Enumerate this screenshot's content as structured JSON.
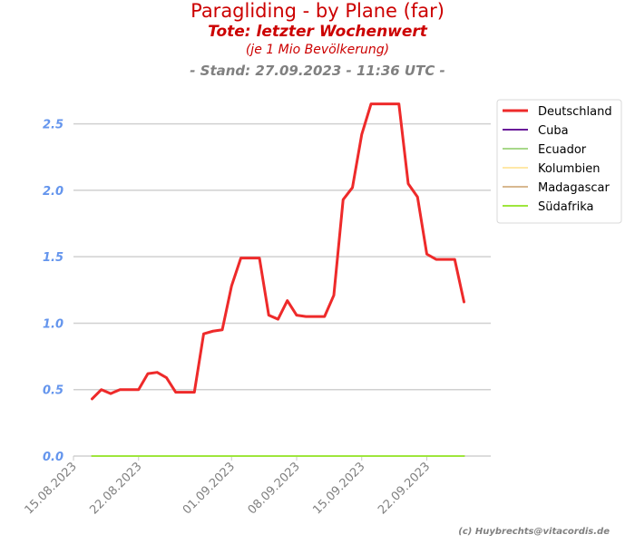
{
  "chart_data": {
    "type": "line",
    "title": "Paragliding - by Plane (far)",
    "subtitle": "Tote: letzter Wochenwert",
    "subtitle2": "(je 1 Mio Bevölkerung)",
    "stand": "- Stand: 27.09.2023 - 11:36 UTC -",
    "xlabel": "",
    "ylabel": "",
    "ylim": [
      0,
      2.75
    ],
    "yticks": [
      "0.0",
      "0.5",
      "1.0",
      "1.5",
      "2.0",
      "2.5"
    ],
    "xticks": [
      "15.08.2023",
      "22.08.2023",
      "01.09.2023",
      "08.09.2023",
      "15.09.2023",
      "22.09.2023"
    ],
    "x": [
      "17.08.2023",
      "18.08.2023",
      "19.08.2023",
      "20.08.2023",
      "21.08.2023",
      "22.08.2023",
      "23.08.2023",
      "24.08.2023",
      "25.08.2023",
      "26.08.2023",
      "27.08.2023",
      "28.08.2023",
      "29.08.2023",
      "30.08.2023",
      "31.08.2023",
      "01.09.2023",
      "02.09.2023",
      "03.09.2023",
      "04.09.2023",
      "05.09.2023",
      "06.09.2023",
      "07.09.2023",
      "08.09.2023",
      "09.09.2023",
      "10.09.2023",
      "11.09.2023",
      "12.09.2023",
      "13.09.2023",
      "14.09.2023",
      "15.09.2023",
      "16.09.2023",
      "17.09.2023",
      "18.09.2023",
      "19.09.2023",
      "20.09.2023",
      "21.09.2023",
      "22.09.2023",
      "23.09.2023",
      "24.09.2023",
      "25.09.2023",
      "26.09.2023",
      "27.09.2023"
    ],
    "grid": true,
    "legend_position": "right",
    "series": [
      {
        "name": "Deutschland",
        "color": "#ee2a2a",
        "values": [
          0.43,
          0.5,
          0.47,
          0.5,
          0.5,
          0.5,
          0.62,
          0.63,
          0.59,
          0.48,
          0.48,
          0.48,
          0.92,
          0.94,
          0.95,
          1.28,
          1.49,
          1.49,
          1.49,
          1.06,
          1.03,
          1.17,
          1.06,
          1.05,
          1.05,
          1.05,
          1.21,
          1.93,
          2.02,
          2.42,
          2.65,
          2.65,
          2.65,
          2.65,
          2.05,
          1.95,
          1.52,
          1.48,
          1.48,
          1.48,
          1.16,
          null
        ]
      },
      {
        "name": "Cuba",
        "color": "#6a1b9a",
        "values": "zeros"
      },
      {
        "name": "Ecuador",
        "color": "#a8d88a",
        "values": "zeros"
      },
      {
        "name": "Kolumbien",
        "color": "#ffe8a8",
        "values": "zeros"
      },
      {
        "name": "Madagascar",
        "color": "#d8b890",
        "values": "zeros"
      },
      {
        "name": "Südafrika",
        "color": "#9ee63c",
        "values": "zeros"
      }
    ]
  },
  "copyright": "(c) Huybrechts@vitacordis.de"
}
